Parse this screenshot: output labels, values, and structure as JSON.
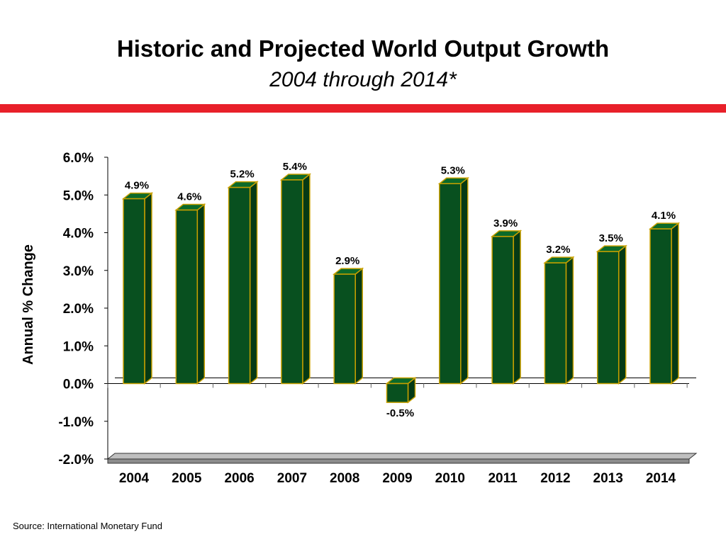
{
  "header": {
    "title": "Historic and Projected World Output Growth",
    "subtitle": "2004 through 2014*"
  },
  "footer": {
    "source": "Source:  International Monetary Fund"
  },
  "colors": {
    "accent_bar": "#e8202a",
    "bar_front": "#08501f",
    "bar_side": "#053a15",
    "bar_top": "#0b6a2a",
    "bar_outline": "#c8a000",
    "floor": "#bfbfbf"
  },
  "chart_data": {
    "type": "bar",
    "categories": [
      "2004",
      "2005",
      "2006",
      "2007",
      "2008",
      "2009",
      "2010",
      "2011",
      "2012",
      "2013",
      "2014"
    ],
    "values": [
      4.9,
      4.6,
      5.2,
      5.4,
      2.9,
      -0.5,
      5.3,
      3.9,
      3.2,
      3.5,
      4.1
    ],
    "data_labels": [
      "4.9%",
      "4.6%",
      "5.2%",
      "5.4%",
      "2.9%",
      "-0.5%",
      "5.3%",
      "3.9%",
      "3.2%",
      "3.5%",
      "4.1%"
    ],
    "ylabel": "Annual % Change",
    "ylim": [
      -2.0,
      6.0
    ],
    "yticks": [
      6.0,
      5.0,
      4.0,
      3.0,
      2.0,
      1.0,
      0.0,
      -1.0,
      -2.0
    ],
    "ytick_labels": [
      "6.0%",
      "5.0%",
      "4.0%",
      "3.0%",
      "2.0%",
      "1.0%",
      "0.0%",
      "-1.0%",
      "-2.0%"
    ],
    "style": "3d-bar",
    "grid": false,
    "legend": "none"
  }
}
